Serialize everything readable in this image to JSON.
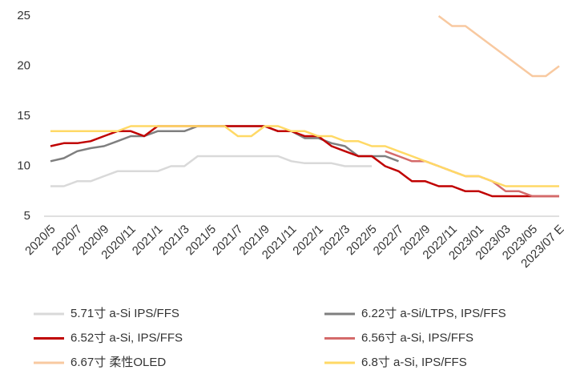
{
  "chart_data": {
    "type": "line",
    "categories": [
      "2020/5",
      null,
      "2020/7",
      null,
      "2020/9",
      null,
      "2020/11",
      null,
      "2021/1",
      null,
      "2021/3",
      null,
      "2021/5",
      null,
      "2021/7",
      null,
      "2021/9",
      null,
      "2021/11",
      null,
      "2022/1",
      null,
      "2022/3",
      null,
      "2022/5",
      null,
      "2022/7",
      null,
      "2022/9",
      null,
      "2022/11",
      null,
      "2023/01",
      null,
      "2023/03",
      null,
      "2023/05",
      null,
      "2023/07 E"
    ],
    "series": [
      {
        "name": "5.71寸 a-Si IPS/FFS",
        "color": "#d9d9d9",
        "values": [
          8,
          8,
          8.5,
          8.5,
          9,
          9.5,
          9.5,
          9.5,
          9.5,
          10,
          10,
          11,
          11,
          11,
          11,
          11,
          11,
          11,
          10.5,
          10.3,
          10.3,
          10.3,
          10,
          10,
          10,
          null,
          null,
          null,
          null,
          null,
          null,
          null,
          null,
          null,
          null,
          null,
          null,
          null,
          null
        ]
      },
      {
        "name": "6.22寸 a-Si/LTPS, IPS/FFS",
        "color": "#7f7f7f",
        "values": [
          10.5,
          10.8,
          11.5,
          11.8,
          12,
          12.5,
          13,
          13,
          13.5,
          13.5,
          13.5,
          14,
          14,
          14,
          14,
          14,
          14,
          13.5,
          13.5,
          12.8,
          12.8,
          12.3,
          12,
          11,
          11,
          11,
          10.5,
          null,
          null,
          null,
          null,
          null,
          null,
          null,
          null,
          null,
          null,
          null,
          null
        ]
      },
      {
        "name": "6.52寸 a-Si, IPS/FFS",
        "color": "#c00000",
        "values": [
          12,
          12.3,
          12.3,
          12.5,
          13,
          13.5,
          13.5,
          13,
          14,
          14,
          14,
          14,
          14,
          14,
          14,
          14,
          14,
          13.5,
          13.5,
          13,
          13,
          12,
          11.5,
          11,
          11,
          10,
          9.5,
          8.5,
          8.5,
          8,
          8,
          7.5,
          7.5,
          7,
          7,
          7,
          7,
          7,
          7
        ]
      },
      {
        "name": "6.56寸 a-Si, IPS/FFS",
        "color": "#d46a6a",
        "values": [
          null,
          null,
          null,
          null,
          null,
          null,
          null,
          null,
          null,
          null,
          null,
          null,
          null,
          null,
          null,
          null,
          null,
          null,
          null,
          null,
          null,
          null,
          null,
          null,
          null,
          11.5,
          11,
          10.5,
          10.5,
          10,
          9.5,
          9,
          9,
          8.5,
          7.5,
          7.5,
          7,
          7,
          7
        ]
      },
      {
        "name": "6.67寸 柔性OLED",
        "color": "#f8c9a0",
        "values": [
          null,
          null,
          null,
          null,
          null,
          null,
          null,
          null,
          null,
          null,
          null,
          null,
          null,
          null,
          null,
          null,
          null,
          null,
          null,
          null,
          null,
          null,
          null,
          null,
          null,
          null,
          null,
          null,
          null,
          25,
          24,
          24,
          23,
          22,
          21,
          20,
          19,
          19,
          20
        ]
      },
      {
        "name": "6.8寸 a-Si, IPS/FFS",
        "color": "#ffd966",
        "values": [
          13.5,
          13.5,
          13.5,
          13.5,
          13.5,
          13.5,
          14,
          14,
          14,
          14,
          14,
          14,
          14,
          14,
          13,
          13,
          14,
          14,
          13.5,
          13.5,
          13,
          13,
          12.5,
          12.5,
          12,
          12,
          11.5,
          11,
          10.5,
          10,
          9.5,
          9,
          9,
          8.5,
          8,
          8,
          8,
          8,
          8
        ]
      }
    ],
    "ylim": [
      5,
      25
    ],
    "yticks": [
      5,
      10,
      15,
      20,
      25
    ]
  }
}
